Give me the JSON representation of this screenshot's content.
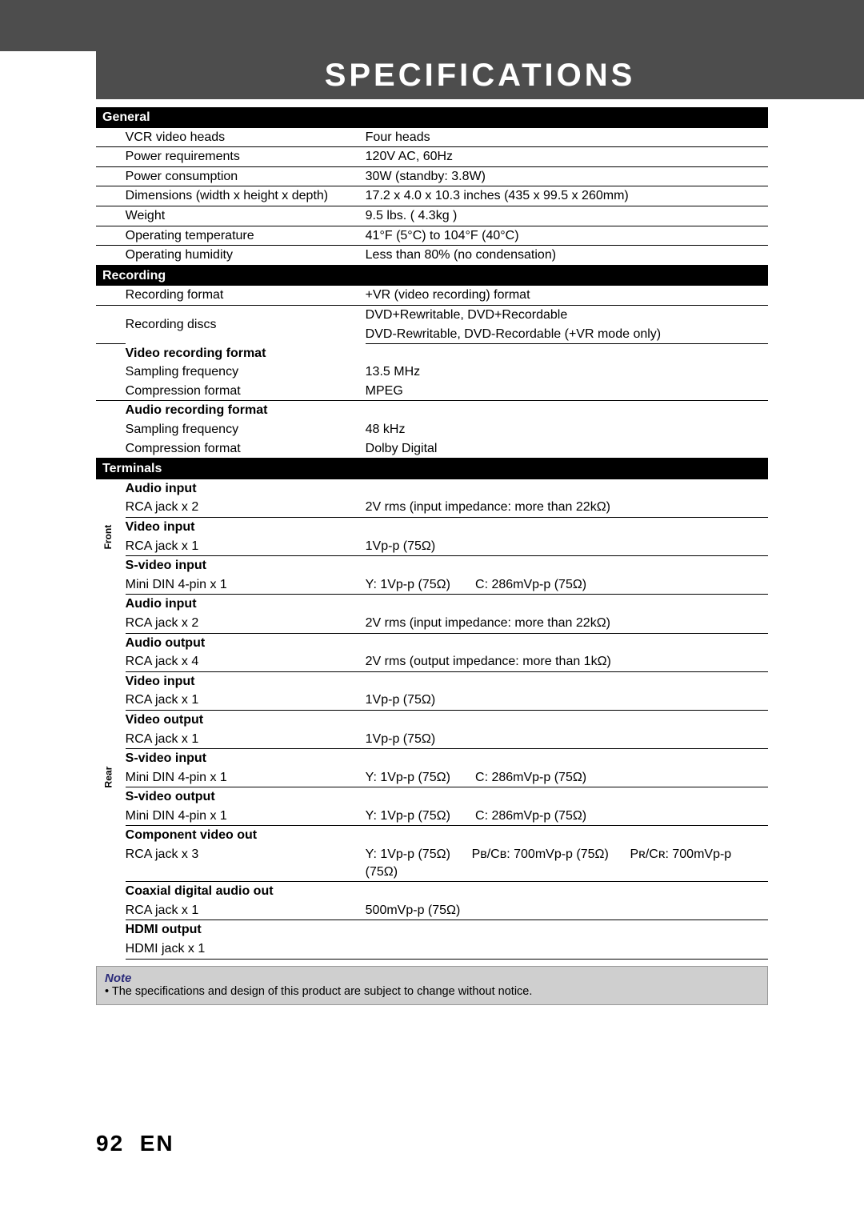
{
  "title": "SPECIFICATIONS",
  "sections": {
    "general": {
      "header": "General",
      "rows": [
        {
          "label": "VCR video heads",
          "value": "Four heads"
        },
        {
          "label": "Power requirements",
          "value": "120V AC, 60Hz"
        },
        {
          "label": "Power consumption",
          "value": "30W (standby: 3.8W)"
        },
        {
          "label": "Dimensions (width x height x depth)",
          "value": "17.2 x 4.0 x 10.3 inches (435 x 99.5 x 260mm)"
        },
        {
          "label": "Weight",
          "value": "9.5 lbs. ( 4.3kg )"
        },
        {
          "label": "Operating temperature",
          "value": "41°F (5°C) to 104°F (40°C)"
        },
        {
          "label": "Operating humidity",
          "value": "Less than 80% (no condensation)"
        }
      ]
    },
    "recording": {
      "header": "Recording",
      "rows": [
        {
          "label": "Recording format",
          "value": "+VR (video recording) format"
        },
        {
          "label": "Recording discs",
          "value1": "DVD+Rewritable, DVD+Recordable",
          "value2": "DVD-Rewritable, DVD-Recordable (+VR mode only)"
        }
      ],
      "video_rec": {
        "heading": "Video recording format",
        "rows": [
          {
            "label": "Sampling frequency",
            "value": "13.5 MHz"
          },
          {
            "label": "Compression format",
            "value": "MPEG"
          }
        ]
      },
      "audio_rec": {
        "heading": "Audio recording format",
        "rows": [
          {
            "label": "Sampling frequency",
            "value": "48 kHz"
          },
          {
            "label": "Compression format",
            "value": "Dolby Digital"
          }
        ]
      }
    },
    "terminals": {
      "header": "Terminals",
      "front_label": "Front",
      "rear_label": "Rear",
      "front": [
        {
          "heading": "Audio input",
          "label": "RCA jack x 2",
          "value": "2V rms (input impedance: more than 22kΩ)"
        },
        {
          "heading": "Video input",
          "label": "RCA jack x 1",
          "value": "1Vp-p (75Ω)"
        },
        {
          "heading": "S-video input",
          "label": "Mini DIN 4-pin x 1",
          "value": "Y: 1Vp-p (75Ω)       C: 286mVp-p (75Ω)"
        }
      ],
      "rear": [
        {
          "heading": "Audio input",
          "label": "RCA jack x 2",
          "value": "2V rms (input impedance: more than 22kΩ)"
        },
        {
          "heading": "Audio output",
          "label": "RCA jack x 4",
          "value": "2V rms (output impedance: more than 1kΩ)"
        },
        {
          "heading": "Video input",
          "label": "RCA jack x 1",
          "value": "1Vp-p (75Ω)"
        },
        {
          "heading": "Video output",
          "label": "RCA jack x 1",
          "value": "1Vp-p (75Ω)"
        },
        {
          "heading": "S-video input",
          "label": "Mini DIN 4-pin x 1",
          "value": "Y: 1Vp-p (75Ω)       C: 286mVp-p (75Ω)"
        },
        {
          "heading": "S-video output",
          "label": "Mini DIN 4-pin x 1",
          "value": "Y: 1Vp-p (75Ω)       C: 286mVp-p (75Ω)"
        },
        {
          "heading": "Component video out",
          "label": "RCA jack x 3",
          "value_y": "Y: 1Vp-p (75Ω)",
          "value_pb": "Pʙ/Cʙ: 700mVp-p (75Ω)",
          "value_pr": "Pʀ/Cʀ: 700mVp-p (75Ω)"
        },
        {
          "heading": "Coaxial digital audio out",
          "label": "RCA jack x 1",
          "value": "500mVp-p (75Ω)"
        },
        {
          "heading": "HDMI output",
          "label": "HDMI jack x 1",
          "value": ""
        }
      ]
    }
  },
  "note": {
    "title": "Note",
    "body": "•  The specifications and design of this product are subject to change without notice."
  },
  "page_number": "92",
  "page_lang": "EN"
}
